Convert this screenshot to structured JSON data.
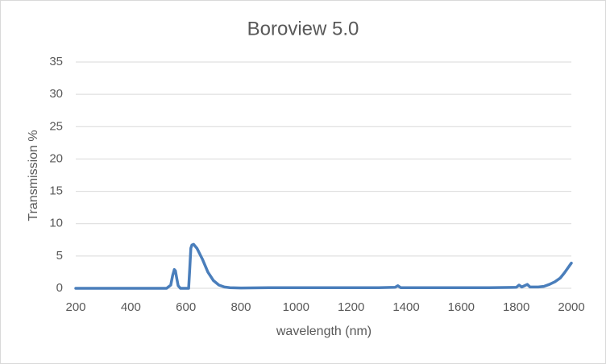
{
  "chart_data": {
    "type": "line",
    "title": "Boroview 5.0",
    "x_label": "wavelength (nm)",
    "y_label": "Transmission %",
    "series": [
      {
        "name": "Boroview 5.0",
        "color": "#4a7ebb",
        "x": [
          200,
          300,
          400,
          500,
          530,
          545,
          552,
          558,
          562,
          567,
          572,
          580,
          600,
          610,
          614,
          618,
          622,
          628,
          640,
          660,
          680,
          700,
          720,
          740,
          760,
          800,
          900,
          1000,
          1100,
          1200,
          1300,
          1360,
          1370,
          1380,
          1500,
          1600,
          1700,
          1800,
          1810,
          1820,
          1840,
          1850,
          1880,
          1900,
          1920,
          1940,
          1960,
          1975,
          1990,
          2000
        ],
        "values": [
          0,
          0,
          0,
          0,
          0,
          0.5,
          2.0,
          2.9,
          2.7,
          1.5,
          0.4,
          0,
          0,
          0,
          3.0,
          6.2,
          6.7,
          6.8,
          6.2,
          4.5,
          2.5,
          1.2,
          0.5,
          0.2,
          0.1,
          0.05,
          0.1,
          0.1,
          0.1,
          0.1,
          0.1,
          0.15,
          0.4,
          0.1,
          0.1,
          0.1,
          0.1,
          0.15,
          0.5,
          0.2,
          0.6,
          0.2,
          0.2,
          0.3,
          0.6,
          1.0,
          1.6,
          2.4,
          3.3,
          3.9
        ]
      }
    ],
    "xlim": [
      200,
      2000
    ],
    "xticks": [
      200,
      400,
      600,
      800,
      1000,
      1200,
      1400,
      1600,
      1800,
      2000
    ],
    "ylim": [
      0,
      35
    ],
    "yticks": [
      0,
      5,
      10,
      15,
      20,
      25,
      30,
      35
    ],
    "grid": true
  }
}
